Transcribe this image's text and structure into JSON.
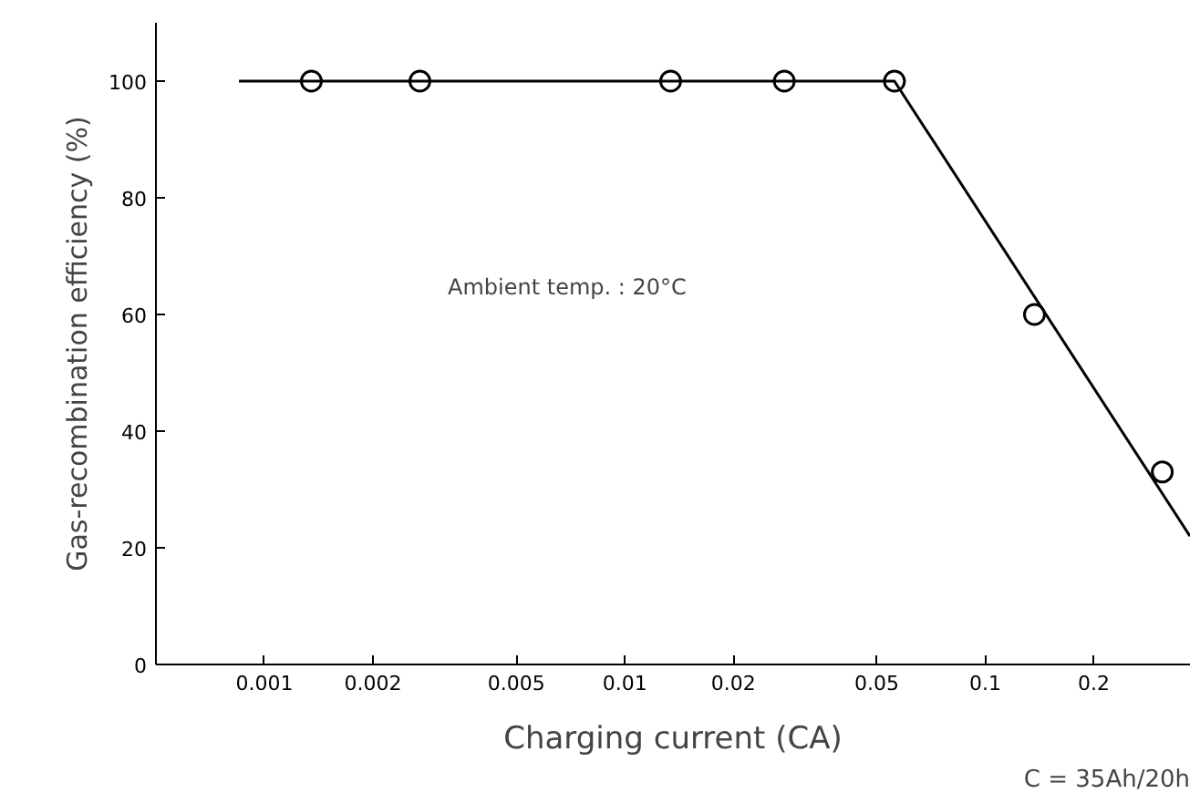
{
  "chart_data": {
    "type": "scatter",
    "xlabel": "Charging current (CA)",
    "ylabel": "Gas-recombination efficiency (%)",
    "annotations": [
      "Ambient temp. : 20°C",
      "C = 35Ah/20h"
    ],
    "log": "x",
    "grid": false,
    "marker": "circle",
    "xlim": [
      0.0005,
      0.37
    ],
    "xticks": [
      0.001,
      0.002,
      0.005,
      0.01,
      0.02,
      0.05,
      0.1,
      0.2
    ],
    "ylim": [
      0,
      110
    ],
    "yticks": [
      0,
      20,
      40,
      60,
      80,
      100
    ],
    "series": [
      {
        "color": "#000000",
        "x": [
          0.00135,
          0.0027,
          0.0134,
          0.0277,
          0.056,
          0.137,
          0.31
        ],
        "values": [
          100,
          100,
          100,
          100,
          100,
          60,
          33
        ]
      },
      {
        "type": "line",
        "color": "#000000",
        "marker": "none",
        "line_style": "solid",
        "x": [
          0.00085,
          0.056,
          0.37
        ],
        "values": [
          100,
          100,
          22
        ]
      }
    ]
  }
}
